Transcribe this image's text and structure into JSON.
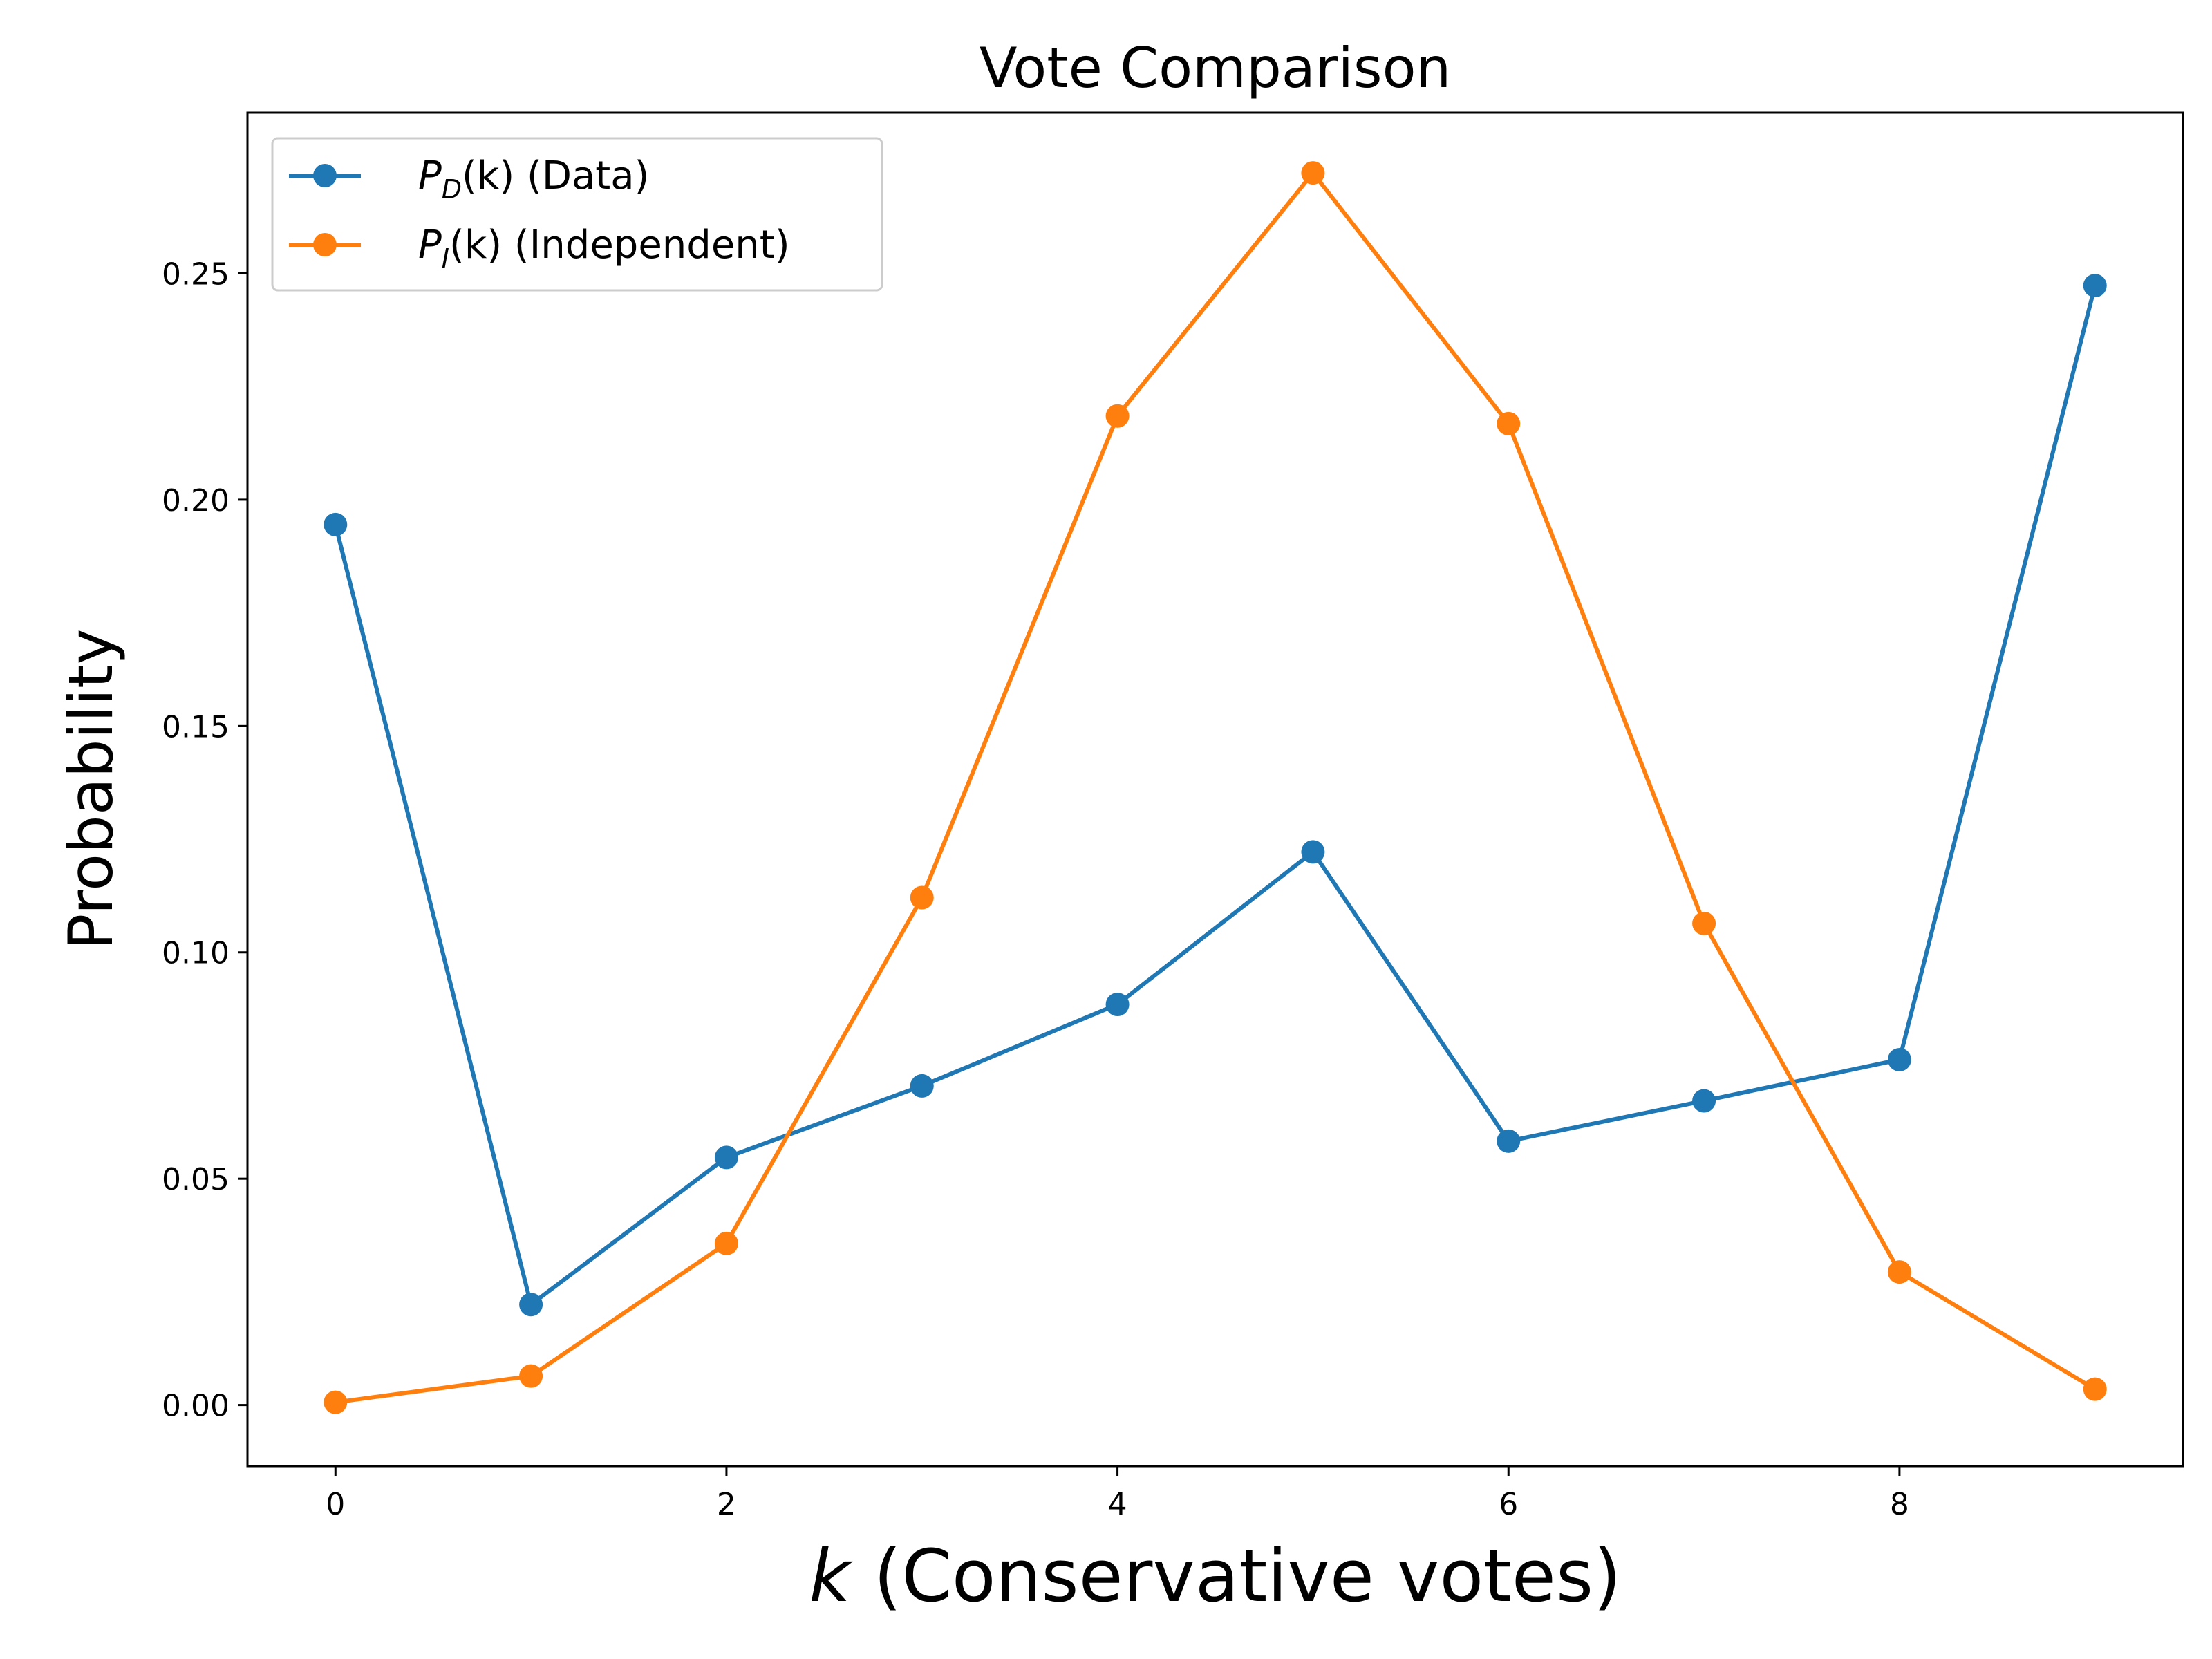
{
  "chart_data": {
    "type": "line",
    "title": "Vote Comparison",
    "xlabel_var": "k",
    "xlabel_rest": " (Conservative votes)",
    "ylabel": "Probability",
    "xlim": [
      -0.45,
      9.45
    ],
    "ylim": [
      -0.0135,
      0.2855
    ],
    "xticks": [
      0,
      2,
      4,
      6,
      8
    ],
    "xtick_labels": [
      "0",
      "2",
      "4",
      "6",
      "8"
    ],
    "yticks": [
      0.0,
      0.05,
      0.1,
      0.15,
      0.2,
      0.25
    ],
    "ytick_labels": [
      "0.00",
      "0.05",
      "0.10",
      "0.15",
      "0.20",
      "0.25"
    ],
    "grid": false,
    "legend_placement": "top-left",
    "x": [
      0,
      1,
      2,
      3,
      4,
      5,
      6,
      7,
      8,
      9
    ],
    "series": [
      {
        "legend_var": "P",
        "legend_sub": "D",
        "legend_rest": "(k) (Data)",
        "color": "#1f77b4",
        "values": [
          0.1945,
          0.0222,
          0.0547,
          0.0705,
          0.0885,
          0.1222,
          0.0583,
          0.0672,
          0.0763,
          0.2473
        ]
      },
      {
        "legend_var": "P",
        "legend_sub": "I",
        "legend_rest": "(k) (Independent)",
        "color": "#ff7f0e",
        "values": [
          0.0006,
          0.0064,
          0.0357,
          0.1121,
          0.2185,
          0.2722,
          0.2168,
          0.1064,
          0.0294,
          0.0035
        ]
      }
    ]
  }
}
